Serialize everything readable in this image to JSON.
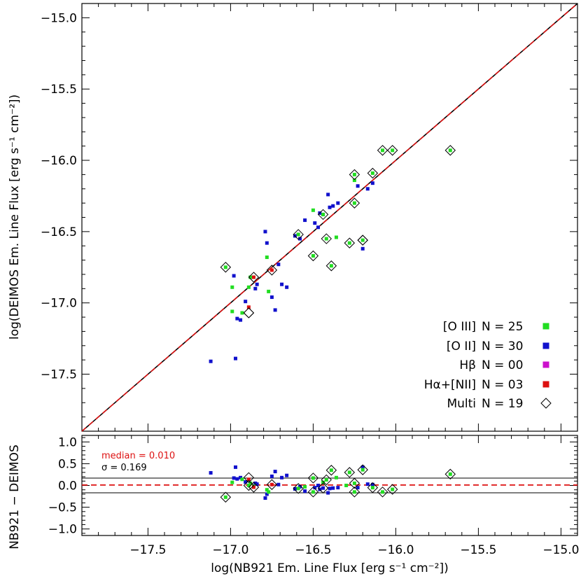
{
  "chart_data": [
    {
      "type": "scatter",
      "panel": "main",
      "ylabel": "log(DEIMOS Em. Line Flux [erg s⁻¹ cm⁻²])",
      "xlim": [
        -17.9,
        -14.9
      ],
      "ylim": [
        -17.9,
        -14.9
      ],
      "yticks": [
        -15.0,
        -15.5,
        -16.0,
        -16.5,
        -17.0,
        -17.5
      ],
      "ytick_labels": [
        "−15.0",
        "−15.5",
        "−16.0",
        "−16.5",
        "−17.0",
        "−17.5"
      ],
      "reference_line": "y = x (dashed red/black)",
      "legend": [
        {
          "label": "[O III]",
          "count_text": "N = 25",
          "color": "#22dd22",
          "marker": "square"
        },
        {
          "label": "[O II]",
          "count_text": "N = 30",
          "color": "#1111cc",
          "marker": "square"
        },
        {
          "label": "Hβ",
          "count_text": "N = 00",
          "color": "#cc11cc",
          "marker": "square"
        },
        {
          "label": "Hα+[NII]",
          "count_text": "N = 03",
          "color": "#dd1111",
          "marker": "square"
        },
        {
          "label": "Multi",
          "count_text": "N = 19",
          "color": "#000000",
          "marker": "diamond"
        }
      ],
      "legend_position": "bottom-right",
      "series": [
        {
          "name": "[O III]",
          "color": "#22dd22",
          "x": [
            -17.03,
            -16.99,
            -16.99,
            -16.93,
            -16.89,
            -16.88,
            -16.86,
            -16.78,
            -16.77,
            -16.5,
            -16.5,
            -16.44,
            -16.42,
            -16.36,
            -16.28,
            -16.25,
            -16.25,
            -16.25,
            -16.2,
            -16.14,
            -16.08,
            -16.02,
            -15.67,
            -16.59,
            -16.39
          ],
          "y": [
            -16.75,
            -17.06,
            -16.89,
            -17.07,
            -16.89,
            -16.82,
            -16.82,
            -16.68,
            -16.92,
            -16.35,
            -16.67,
            -16.38,
            -16.55,
            -16.54,
            -16.58,
            -16.1,
            -16.14,
            -16.3,
            -16.56,
            -16.09,
            -15.93,
            -15.93,
            -15.93,
            -16.52,
            -16.74
          ]
        },
        {
          "name": "[O II]",
          "color": "#1111cc",
          "x": [
            -17.12,
            -16.97,
            -16.96,
            -16.94,
            -16.91,
            -16.85,
            -16.84,
            -16.79,
            -16.78,
            -16.75,
            -16.73,
            -16.71,
            -16.69,
            -16.66,
            -16.61,
            -16.58,
            -16.55,
            -16.49,
            -16.47,
            -16.46,
            -16.44,
            -16.41,
            -16.4,
            -16.38,
            -16.35,
            -16.23,
            -16.2,
            -16.17,
            -16.14,
            -16.98
          ],
          "y": [
            -17.41,
            -17.39,
            -17.11,
            -17.12,
            -16.99,
            -16.9,
            -16.87,
            -16.5,
            -16.58,
            -16.96,
            -17.05,
            -16.73,
            -16.87,
            -16.89,
            -16.53,
            -16.55,
            -16.42,
            -16.44,
            -16.47,
            -16.37,
            -16.38,
            -16.24,
            -16.33,
            -16.32,
            -16.3,
            -16.18,
            -16.62,
            -16.2,
            -16.16,
            -16.81
          ]
        },
        {
          "name": "Hα+[NII]",
          "color": "#dd1111",
          "x": [
            -16.86,
            -16.75,
            -16.89
          ],
          "y": [
            -16.82,
            -16.77,
            -17.03
          ]
        },
        {
          "name": "Multi",
          "color": "#000000",
          "x": [
            -17.03,
            -16.89,
            -16.86,
            -16.75,
            -16.59,
            -16.5,
            -16.44,
            -16.42,
            -16.39,
            -16.28,
            -16.25,
            -16.25,
            -16.2,
            -16.2,
            -16.14,
            -16.08,
            -16.02,
            -15.67,
            -16.89
          ],
          "y": [
            -16.75,
            -17.07,
            -16.82,
            -16.77,
            -16.52,
            -16.67,
            -16.38,
            -16.55,
            -16.74,
            -16.58,
            -16.1,
            -16.3,
            -16.56,
            -16.56,
            -16.09,
            -15.93,
            -15.93,
            -15.93,
            -17.07
          ]
        }
      ]
    },
    {
      "type": "scatter",
      "panel": "residual",
      "xlabel": "log(NB921 Em. Line Flux [erg s⁻¹ cm⁻²])",
      "ylabel": "NB921 − DEIMOS",
      "xlim": [
        -17.9,
        -14.9
      ],
      "ylim": [
        -1.15,
        1.15
      ],
      "xticks": [
        -17.5,
        -17.0,
        -16.5,
        -16.0,
        -15.5,
        -15.0
      ],
      "xtick_labels": [
        "−17.5",
        "−17.0",
        "−16.5",
        "−16.0",
        "−15.5",
        "−15.0"
      ],
      "yticks": [
        1.0,
        0.5,
        0.0,
        -0.5,
        -1.0
      ],
      "ytick_labels": [
        "1.0",
        "0.5",
        "0.0",
        "−0.5",
        "−1.0"
      ],
      "median_text": "median = 0.010",
      "median": 0.01,
      "sigma_text": "σ = 0.169",
      "sigma": 0.169,
      "series": [
        {
          "name": "[O III]",
          "color": "#22dd22",
          "x": [
            -17.03,
            -16.99,
            -16.93,
            -16.89,
            -16.88,
            -16.86,
            -16.78,
            -16.77,
            -16.5,
            -16.5,
            -16.44,
            -16.42,
            -16.36,
            -16.28,
            -16.25,
            -16.25,
            -16.2,
            -16.14,
            -16.08,
            -16.02,
            -15.67,
            -16.59,
            -16.39,
            -16.3,
            -16.55
          ],
          "y": [
            -0.27,
            0.07,
            0.14,
            0.0,
            0.05,
            -0.02,
            -0.1,
            -0.15,
            -0.15,
            0.17,
            0.07,
            0.13,
            0.18,
            0.3,
            -0.15,
            0.05,
            0.36,
            -0.05,
            -0.15,
            -0.09,
            0.26,
            -0.07,
            0.35,
            0.0,
            -0.03
          ]
        },
        {
          "name": "[O II]",
          "color": "#1111cc",
          "x": [
            -17.12,
            -16.97,
            -16.96,
            -16.94,
            -16.91,
            -16.85,
            -16.84,
            -16.79,
            -16.78,
            -16.75,
            -16.73,
            -16.71,
            -16.69,
            -16.66,
            -16.61,
            -16.58,
            -16.55,
            -16.49,
            -16.47,
            -16.46,
            -16.44,
            -16.41,
            -16.4,
            -16.38,
            -16.35,
            -16.23,
            -16.2,
            -16.17,
            -16.14,
            -16.98
          ],
          "y": [
            0.29,
            0.42,
            0.15,
            0.18,
            0.08,
            0.05,
            0.03,
            -0.29,
            -0.2,
            0.21,
            0.32,
            0.02,
            0.18,
            0.23,
            -0.08,
            -0.03,
            -0.13,
            -0.05,
            0.0,
            -0.09,
            -0.06,
            -0.17,
            -0.07,
            -0.06,
            -0.05,
            -0.05,
            0.42,
            0.03,
            0.02,
            0.17
          ]
        },
        {
          "name": "Hα+[NII]",
          "color": "#dd1111",
          "x": [
            -16.86,
            -16.75,
            -16.89
          ],
          "y": [
            -0.04,
            0.02,
            0.14
          ]
        },
        {
          "name": "Multi",
          "color": "#000000",
          "x": [
            -17.03,
            -16.89,
            -16.86,
            -16.75,
            -16.59,
            -16.5,
            -16.44,
            -16.42,
            -16.39,
            -16.28,
            -16.25,
            -16.25,
            -16.2,
            -16.14,
            -16.08,
            -16.02,
            -15.67,
            -16.89,
            -16.5
          ],
          "y": [
            -0.27,
            0.18,
            -0.04,
            0.02,
            -0.07,
            0.17,
            -0.06,
            0.13,
            0.35,
            0.3,
            -0.15,
            0.05,
            0.36,
            -0.05,
            -0.15,
            -0.09,
            0.26,
            0.0,
            -0.15
          ]
        }
      ]
    }
  ]
}
